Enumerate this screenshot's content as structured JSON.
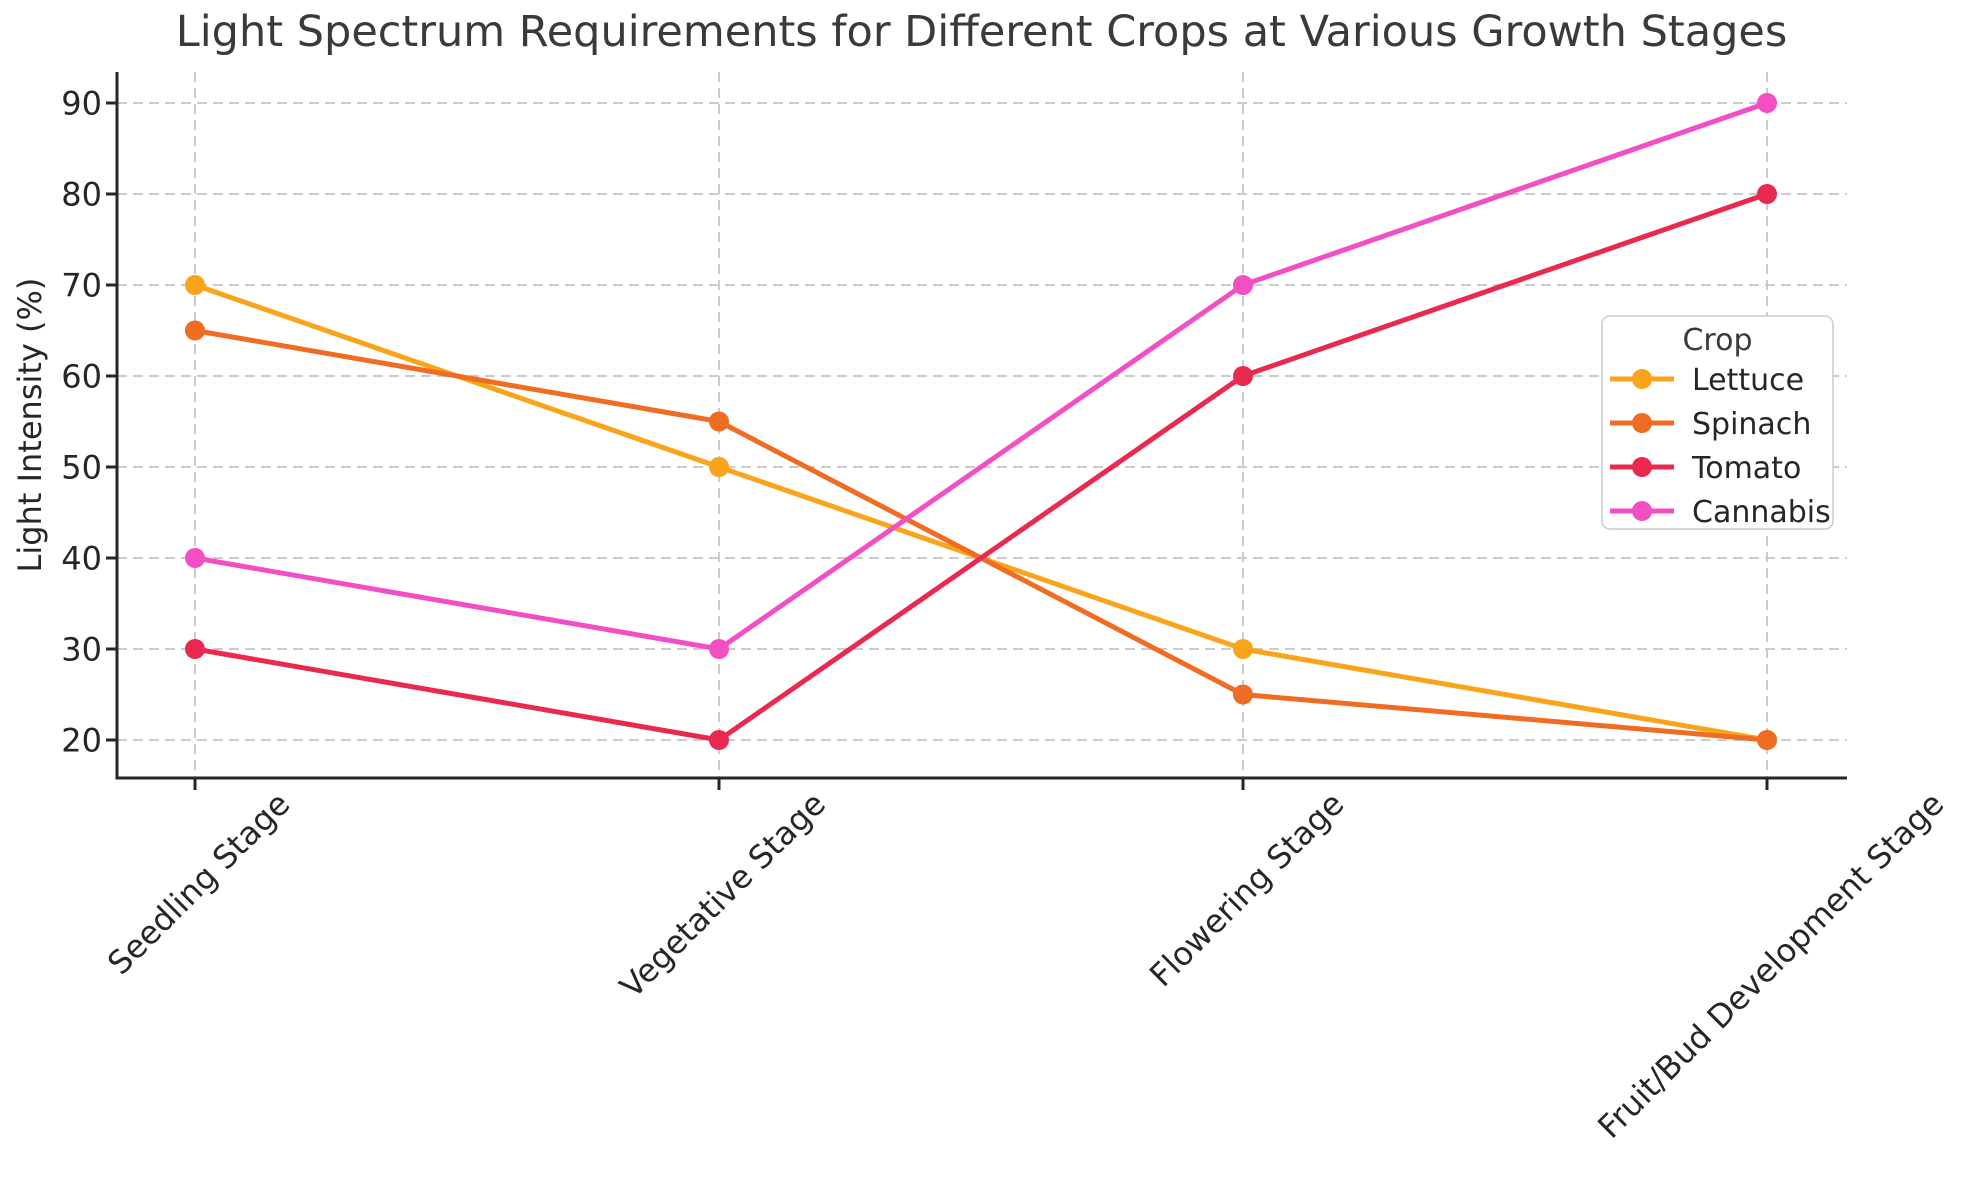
{
  "chart_data": {
    "type": "line",
    "title": "Light Spectrum Requirements for Different Crops at Various Growth Stages",
    "ylabel": "Light Intensity (%)",
    "categories": [
      "Seedling Stage",
      "Vegetative Stage",
      "Flowering Stage",
      "Fruit/Bud Development Stage"
    ],
    "series": [
      {
        "name": "Lettuce",
        "color": "#FAA41B",
        "values": [
          70,
          50,
          30,
          20
        ]
      },
      {
        "name": "Spinach",
        "color": "#F06C22",
        "values": [
          65,
          55,
          25,
          20
        ]
      },
      {
        "name": "Tomato",
        "color": "#E9294F",
        "values": [
          30,
          20,
          60,
          80
        ]
      },
      {
        "name": "Cannabis",
        "color": "#F24FC5",
        "values": [
          40,
          30,
          70,
          90
        ]
      }
    ],
    "yticks": [
      20,
      30,
      40,
      50,
      60,
      70,
      80,
      90
    ],
    "ylim": [
      15.8,
      93.5
    ],
    "grid": true,
    "legend": {
      "title": "Crop",
      "position": "right"
    }
  },
  "style": {
    "grid_color": "#cccccc",
    "axis_color": "#262626",
    "tick_text_color": "#262626",
    "title_color": "#3a3a3a",
    "legend_border_color": "#cccccc",
    "legend_bg_color": "#ffffff",
    "background": "#ffffff"
  }
}
